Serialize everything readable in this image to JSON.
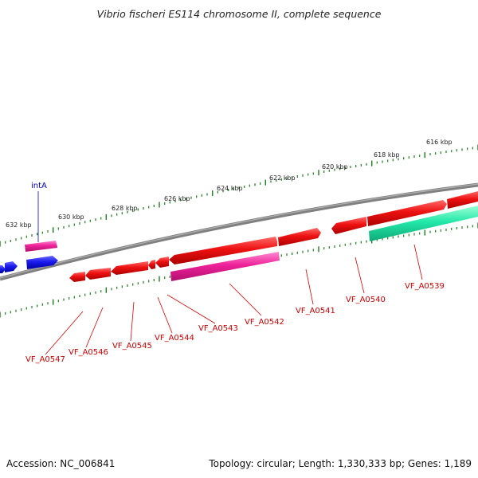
{
  "title": "Vibrio fischeri ES114 chromosome II, complete sequence",
  "footer": {
    "accession": "Accession: NC_006841",
    "topology": "Topology: circular; Length: 1,330,333 bp; Genes: 1,189"
  },
  "colors": {
    "backbone": "#808080",
    "tick": "#1e7d1e",
    "gene_label": "#cc0000",
    "special_label": "#0000bb",
    "leader": "#dd0000",
    "gene_red": "#ee1111",
    "gene_pink": "#ee2299",
    "gene_blue": "#1a1aee",
    "gene_teal": "#22e8a8"
  },
  "ruler_labels": [
    "632 kbp",
    "630 kbp",
    "628 kbp",
    "626 kbp",
    "624 kbp",
    "622 kbp",
    "620 kbp",
    "618 kbp",
    "616 kbp"
  ],
  "genes": [
    {
      "id": "intA",
      "color": "gene_pink",
      "track": "outer-2",
      "strand": "forward"
    },
    {
      "id": "blue-1",
      "color": "gene_blue",
      "track": "outer-1",
      "strand": "reverse"
    },
    {
      "id": "blue-2",
      "color": "gene_blue",
      "track": "edge",
      "strand": "forward"
    },
    {
      "id": "VF_A0547",
      "color": "gene_red",
      "track": "inner",
      "strand": "reverse"
    },
    {
      "id": "VF_A0546",
      "color": "gene_red",
      "track": "inner",
      "strand": "reverse"
    },
    {
      "id": "VF_A0545",
      "color": "gene_red",
      "track": "inner",
      "strand": "reverse"
    },
    {
      "id": "VF_A0544",
      "color": "gene_red",
      "track": "inner",
      "strand": "reverse"
    },
    {
      "id": "VF_A0543",
      "color": "gene_red",
      "track": "inner",
      "strand": "reverse"
    },
    {
      "id": "VF_A0542",
      "color": "gene_red",
      "track": "inner",
      "strand": "reverse"
    },
    {
      "id": "VF_A0542-pink",
      "color": "gene_pink",
      "track": "inner-2",
      "strand": "forward"
    },
    {
      "id": "VF_A0541",
      "color": "gene_red",
      "track": "inner",
      "strand": "forward"
    },
    {
      "id": "VF_A0540",
      "color": "gene_red",
      "track": "inner",
      "strand": "reverse"
    },
    {
      "id": "VF_A0539",
      "color": "gene_red",
      "track": "inner",
      "strand": "forward"
    },
    {
      "id": "VF_A0539-teal",
      "color": "gene_teal",
      "track": "inner-2",
      "strand": "forward"
    }
  ],
  "gene_labels": {
    "intA": "intA",
    "VF_A0547": "VF_A0547",
    "VF_A0546": "VF_A0546",
    "VF_A0545": "VF_A0545",
    "VF_A0544": "VF_A0544",
    "VF_A0543": "VF_A0543",
    "VF_A0542": "VF_A0542",
    "VF_A0541": "VF_A0541",
    "VF_A0540": "VF_A0540",
    "VF_A0539": "VF_A0539"
  }
}
